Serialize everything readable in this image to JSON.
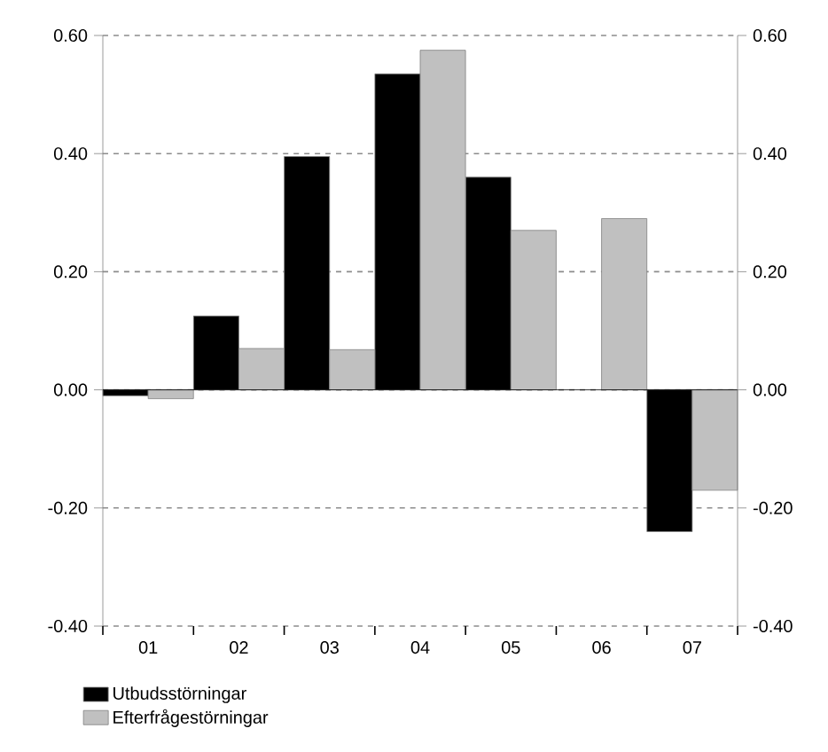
{
  "chart_data": {
    "type": "bar",
    "categories": [
      "01",
      "02",
      "03",
      "04",
      "05",
      "06",
      "07"
    ],
    "series": [
      {
        "name": "Utbudsstörningar",
        "color": "#000000",
        "values": [
          -0.01,
          0.125,
          0.395,
          0.535,
          0.36,
          null,
          -0.24
        ]
      },
      {
        "name": "Efterfrågestörningar",
        "color": "#c0c0c0",
        "values": [
          -0.015,
          0.07,
          0.068,
          0.575,
          0.27,
          0.29,
          -0.17
        ]
      }
    ],
    "ylim": [
      -0.4,
      0.6
    ],
    "yticks": [
      {
        "value": -0.4,
        "label": "-0.40"
      },
      {
        "value": -0.2,
        "label": "-0.20"
      },
      {
        "value": 0,
        "label": "0.00"
      },
      {
        "value": 0.2,
        "label": "0.20"
      },
      {
        "value": 0.4,
        "label": "0.40"
      },
      {
        "value": 0.6,
        "label": "0.60"
      }
    ],
    "y2lim": [
      -0.4,
      0.6
    ],
    "y2ticks": [
      {
        "value": -0.4,
        "label": "-0.40"
      },
      {
        "value": -0.2,
        "label": "-0.20"
      },
      {
        "value": 0,
        "label": "0.00"
      },
      {
        "value": 0.2,
        "label": "0.20"
      },
      {
        "value": 0.4,
        "label": "0.40"
      },
      {
        "value": 0.6,
        "label": "0.60"
      }
    ],
    "grid": "y",
    "legend": "bottom"
  }
}
